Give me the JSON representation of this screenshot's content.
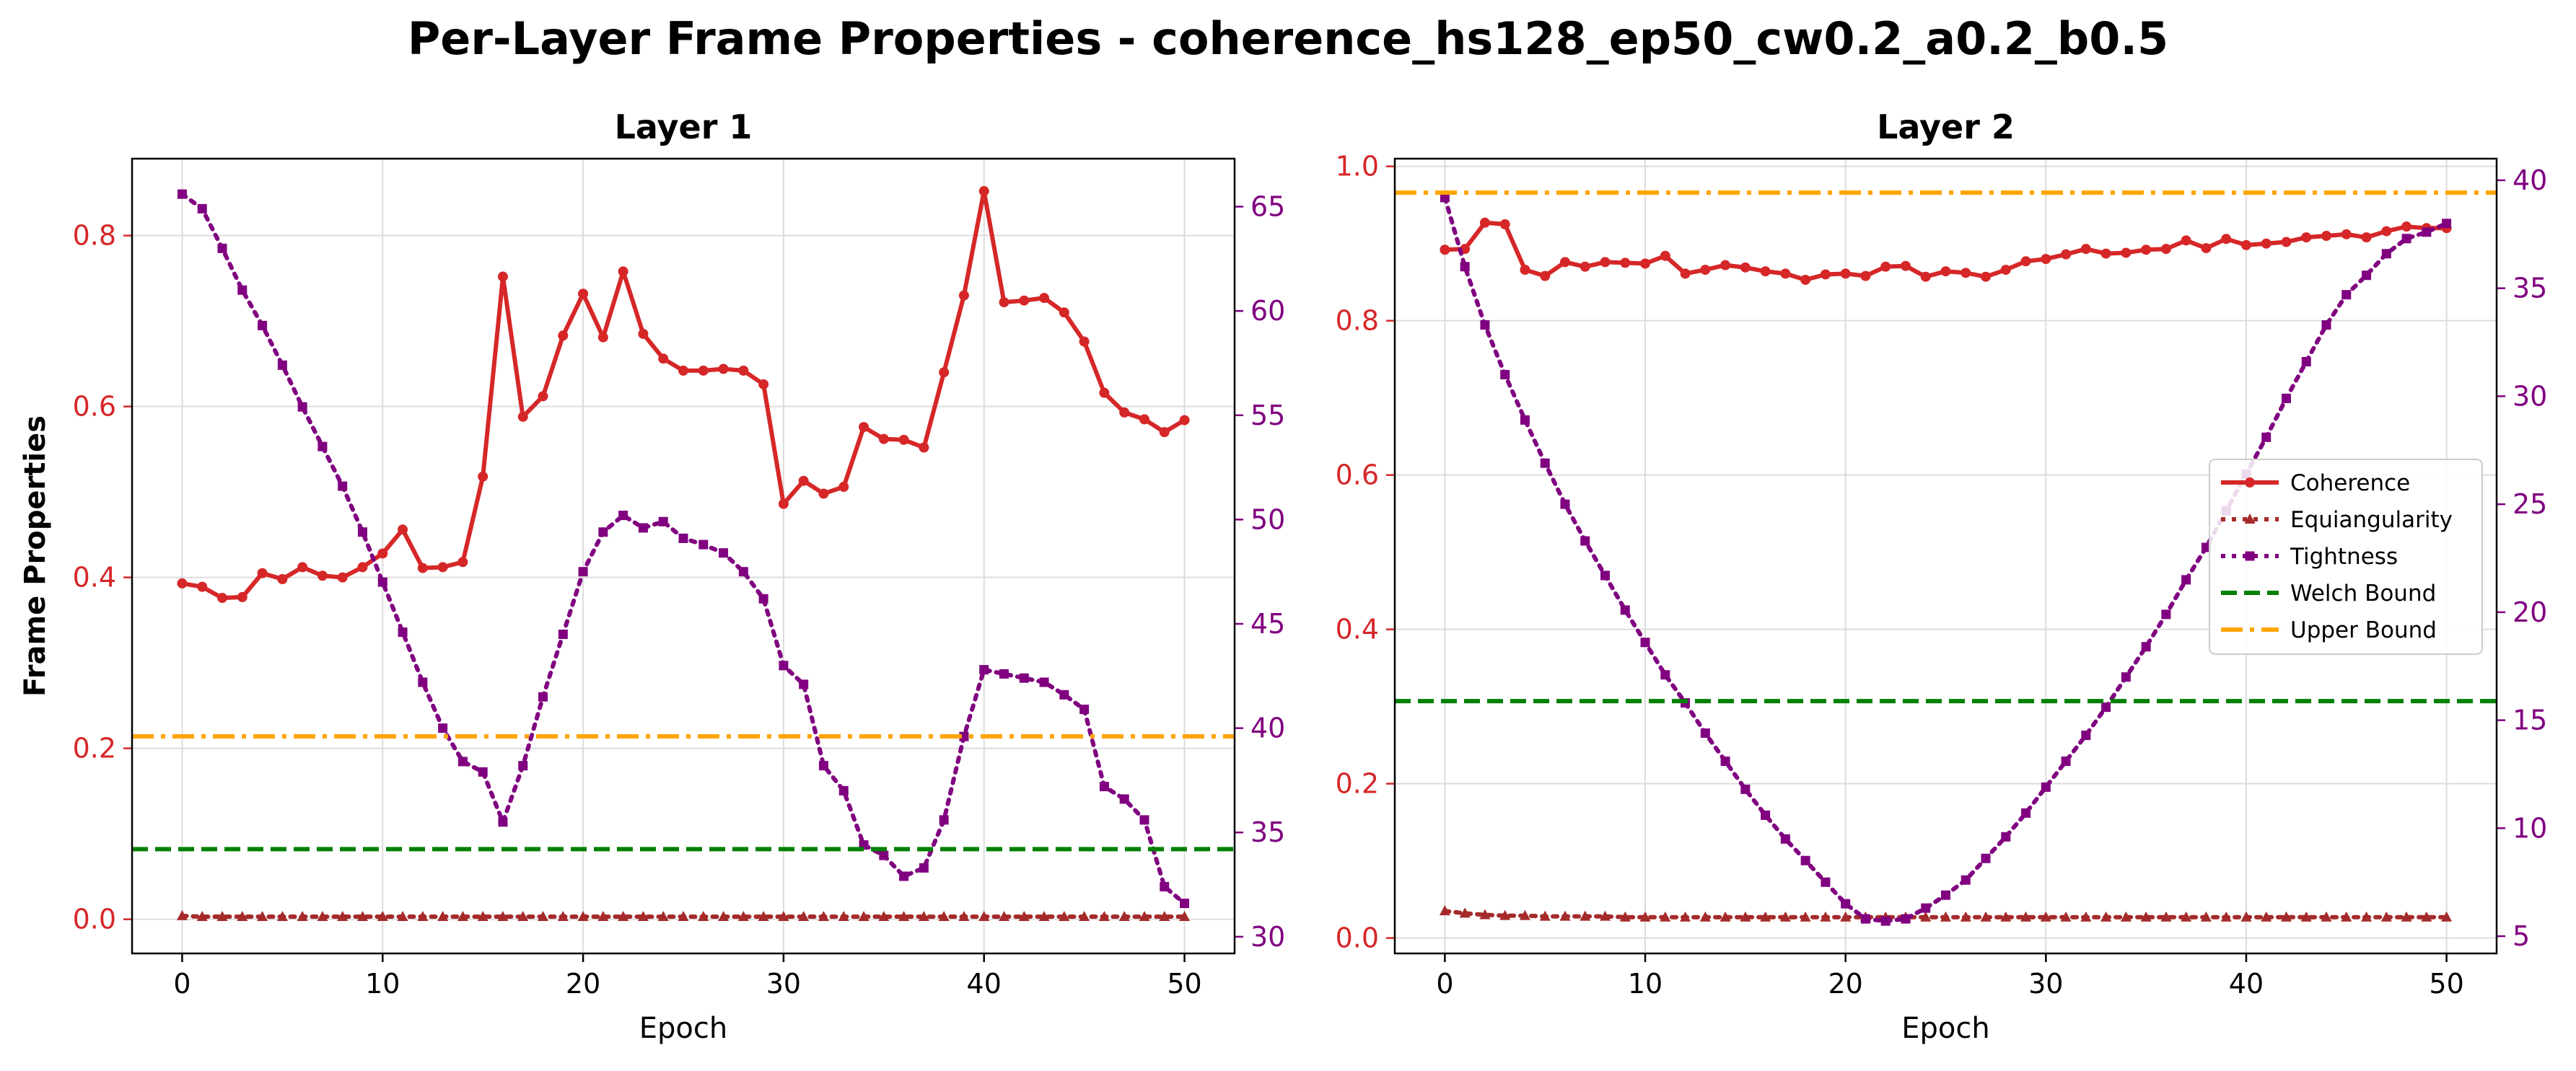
{
  "figure": {
    "suptitle": "Per-Layer Frame Properties - coherence_hs128_ep50_cw0.2_a0.2_b0.5"
  },
  "colors": {
    "coherence": "#d62728",
    "equiangularity": "#a52a2a",
    "tightness": "#800080",
    "welch": "#008000",
    "upper": "#ffa500",
    "left_axis": "#d62728",
    "right_axis": "#800080"
  },
  "legend": {
    "placement": "center-right (Layer 2)",
    "entries": [
      "Coherence",
      "Equiangularity",
      "Tightness",
      "Welch Bound",
      "Upper Bound"
    ]
  },
  "chart_data": [
    {
      "type": "line",
      "title": "Layer 1",
      "xlabel": "Epoch",
      "ylabel": "Frame Properties",
      "xlim": [
        -2.5,
        52.5
      ],
      "ylim": [
        -0.04,
        0.89
      ],
      "y2lim": [
        29.2,
        67.3
      ],
      "xticks": [
        0,
        10,
        20,
        30,
        40,
        50
      ],
      "yticks": [
        0.0,
        0.2,
        0.4,
        0.6,
        0.8
      ],
      "y2ticks": [
        30,
        35,
        40,
        45,
        50,
        55,
        60,
        65
      ],
      "grid": true,
      "x": [
        0,
        1,
        2,
        3,
        4,
        5,
        6,
        7,
        8,
        9,
        10,
        11,
        12,
        13,
        14,
        15,
        16,
        17,
        18,
        19,
        20,
        21,
        22,
        23,
        24,
        25,
        26,
        27,
        28,
        29,
        30,
        31,
        32,
        33,
        34,
        35,
        36,
        37,
        38,
        39,
        40,
        41,
        42,
        43,
        44,
        45,
        46,
        47,
        48,
        49,
        50
      ],
      "series": [
        {
          "name": "Coherence",
          "axis": "left",
          "style": "solid-circle",
          "values": [
            0.393,
            0.389,
            0.376,
            0.377,
            0.405,
            0.398,
            0.412,
            0.402,
            0.4,
            0.412,
            0.428,
            0.456,
            0.411,
            0.412,
            0.418,
            0.518,
            0.752,
            0.588,
            0.612,
            0.683,
            0.732,
            0.681,
            0.758,
            0.685,
            0.656,
            0.642,
            0.642,
            0.644,
            0.642,
            0.626,
            0.486,
            0.513,
            0.498,
            0.506,
            0.576,
            0.562,
            0.561,
            0.552,
            0.64,
            0.73,
            0.852,
            0.722,
            0.724,
            0.727,
            0.71,
            0.676,
            0.616,
            0.593,
            0.585,
            0.57,
            0.584
          ]
        },
        {
          "name": "Equiangularity",
          "axis": "left",
          "style": "dotted-triangle",
          "values": [
            0.004,
            0.003,
            0.003,
            0.003,
            0.003,
            0.003,
            0.003,
            0.003,
            0.003,
            0.003,
            0.003,
            0.003,
            0.003,
            0.003,
            0.003,
            0.003,
            0.003,
            0.003,
            0.003,
            0.003,
            0.003,
            0.003,
            0.003,
            0.003,
            0.003,
            0.003,
            0.003,
            0.003,
            0.003,
            0.003,
            0.003,
            0.003,
            0.003,
            0.003,
            0.003,
            0.003,
            0.003,
            0.003,
            0.003,
            0.003,
            0.003,
            0.003,
            0.003,
            0.003,
            0.003,
            0.003,
            0.003,
            0.003,
            0.003,
            0.003,
            0.003
          ]
        },
        {
          "name": "Tightness",
          "axis": "right",
          "style": "dotted-square",
          "values": [
            65.6,
            64.9,
            63.0,
            61.0,
            59.3,
            57.4,
            55.4,
            53.5,
            51.6,
            49.4,
            47.0,
            44.6,
            42.2,
            40.0,
            38.4,
            37.9,
            35.5,
            38.2,
            41.5,
            44.5,
            47.5,
            49.4,
            50.2,
            49.6,
            49.9,
            49.1,
            48.8,
            48.4,
            47.5,
            46.2,
            43.0,
            42.1,
            38.2,
            37.0,
            34.4,
            33.9,
            32.9,
            33.3,
            35.6,
            39.6,
            42.8,
            42.6,
            42.4,
            42.2,
            41.6,
            40.9,
            37.2,
            36.6,
            35.6,
            32.4,
            31.6
          ]
        },
        {
          "name": "Welch Bound",
          "axis": "left",
          "style": "dashed-hline",
          "value": 0.082
        },
        {
          "name": "Upper Bound",
          "axis": "left",
          "style": "dashdot-hline",
          "value": 0.214
        }
      ]
    },
    {
      "type": "line",
      "title": "Layer 2",
      "xlabel": "Epoch",
      "ylabel": "",
      "xlim": [
        -2.5,
        52.5
      ],
      "ylim": [
        -0.02,
        1.01
      ],
      "y2lim": [
        4.2,
        41.0
      ],
      "xticks": [
        0,
        10,
        20,
        30,
        40,
        50
      ],
      "yticks": [
        0.0,
        0.2,
        0.4,
        0.6,
        0.8,
        1.0
      ],
      "y2ticks": [
        5,
        10,
        15,
        20,
        25,
        30,
        35,
        40
      ],
      "grid": true,
      "x": [
        0,
        1,
        2,
        3,
        4,
        5,
        6,
        7,
        8,
        9,
        10,
        11,
        12,
        13,
        14,
        15,
        16,
        17,
        18,
        19,
        20,
        21,
        22,
        23,
        24,
        25,
        26,
        27,
        28,
        29,
        30,
        31,
        32,
        33,
        34,
        35,
        36,
        37,
        38,
        39,
        40,
        41,
        42,
        43,
        44,
        45,
        46,
        47,
        48,
        49,
        50
      ],
      "series": [
        {
          "name": "Coherence",
          "axis": "left",
          "style": "solid-circle",
          "values": [
            0.892,
            0.893,
            0.927,
            0.925,
            0.866,
            0.858,
            0.876,
            0.87,
            0.876,
            0.875,
            0.874,
            0.884,
            0.861,
            0.866,
            0.872,
            0.869,
            0.864,
            0.861,
            0.853,
            0.86,
            0.861,
            0.858,
            0.87,
            0.871,
            0.857,
            0.864,
            0.862,
            0.857,
            0.866,
            0.877,
            0.88,
            0.886,
            0.893,
            0.887,
            0.888,
            0.892,
            0.893,
            0.904,
            0.894,
            0.906,
            0.898,
            0.9,
            0.902,
            0.908,
            0.91,
            0.912,
            0.908,
            0.916,
            0.922,
            0.92,
            0.92
          ]
        },
        {
          "name": "Equiangularity",
          "axis": "left",
          "style": "dotted-triangle",
          "values": [
            0.035,
            0.032,
            0.03,
            0.029,
            0.029,
            0.028,
            0.028,
            0.028,
            0.028,
            0.027,
            0.027,
            0.027,
            0.027,
            0.027,
            0.027,
            0.027,
            0.027,
            0.027,
            0.027,
            0.027,
            0.027,
            0.027,
            0.027,
            0.027,
            0.027,
            0.027,
            0.027,
            0.027,
            0.027,
            0.027,
            0.027,
            0.027,
            0.027,
            0.027,
            0.027,
            0.027,
            0.027,
            0.027,
            0.027,
            0.027,
            0.027,
            0.027,
            0.027,
            0.027,
            0.027,
            0.027,
            0.027,
            0.027,
            0.027,
            0.027,
            0.027
          ]
        },
        {
          "name": "Tightness",
          "axis": "right",
          "style": "dotted-square",
          "values": [
            39.2,
            36.0,
            33.3,
            31.0,
            28.9,
            26.9,
            25.0,
            23.3,
            21.7,
            20.1,
            18.6,
            17.1,
            15.8,
            14.4,
            13.1,
            11.8,
            10.6,
            9.5,
            8.5,
            7.5,
            6.5,
            5.8,
            5.7,
            5.8,
            6.3,
            6.9,
            7.6,
            8.6,
            9.6,
            10.7,
            11.9,
            13.1,
            14.3,
            15.6,
            17.0,
            18.4,
            19.9,
            21.5,
            23.0,
            24.7,
            26.4,
            28.1,
            29.9,
            31.6,
            33.3,
            34.7,
            35.6,
            36.6,
            37.3,
            37.6,
            38.0
          ]
        },
        {
          "name": "Welch Bound",
          "axis": "left",
          "style": "dashed-hline",
          "value": 0.307
        },
        {
          "name": "Upper Bound",
          "axis": "left",
          "style": "dashdot-hline",
          "value": 0.966
        }
      ]
    }
  ]
}
